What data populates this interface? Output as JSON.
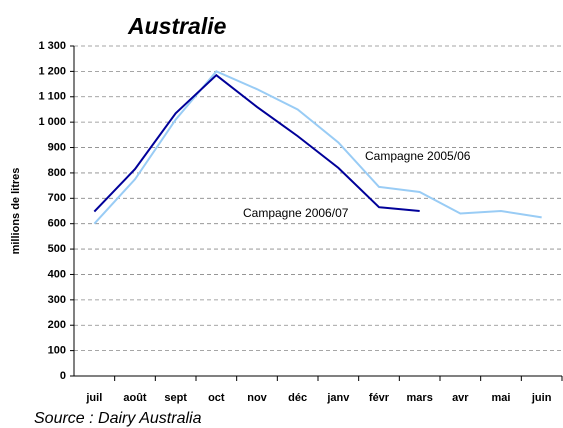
{
  "chart_data": {
    "type": "line",
    "title": "Australie",
    "y_label": "millions de litres",
    "source": "Source : Dairy Australia",
    "categories": [
      "juil",
      "août",
      "sept",
      "oct",
      "nov",
      "déc",
      "janv",
      "févr",
      "mars",
      "avr",
      "mai",
      "juin"
    ],
    "series": [
      {
        "name": "Campagne 2005/06",
        "color": "#99ccf5",
        "values": [
          600,
          775,
          1010,
          1200,
          1130,
          1050,
          920,
          745,
          725,
          640,
          650,
          625
        ]
      },
      {
        "name": "Campagne 2006/07",
        "color": "#000099",
        "values": [
          648,
          815,
          1035,
          1185,
          1060,
          945,
          820,
          665,
          650,
          null,
          null,
          null
        ]
      }
    ],
    "ylim": [
      0,
      1300
    ],
    "yticks": [
      0,
      100,
      200,
      300,
      400,
      500,
      600,
      700,
      800,
      900,
      {
        "value": 1000,
        "label": "1 000"
      },
      {
        "value": 1100,
        "label": "1 100"
      },
      {
        "value": 1200,
        "label": "1 200"
      },
      {
        "value": 1300,
        "label": "1 300"
      }
    ],
    "grid": true
  }
}
